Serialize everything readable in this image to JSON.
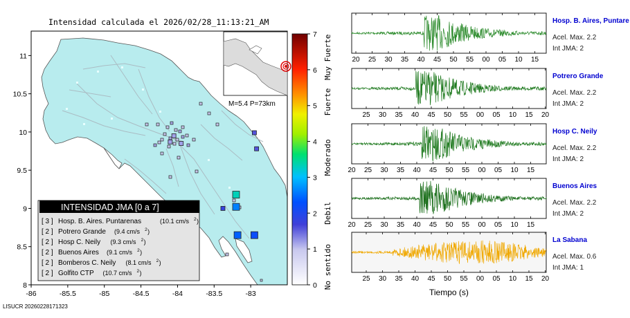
{
  "header": {
    "title": "Intensidad calculada el 2026/02/28_11:13:21_AM"
  },
  "map": {
    "x_ticks": [
      "-86",
      "-85.5",
      "-85",
      "-84.5",
      "-84",
      "-83.5",
      "-83"
    ],
    "y_ticks": [
      "11",
      "10.5",
      "10",
      "9.5",
      "9",
      "8.5",
      "8"
    ],
    "inset_label": "M=5.4 P=73km",
    "land_color": "#b8ecee",
    "stations": [
      {
        "lon": -83.2,
        "lat": 9.18,
        "level": 3.3
      },
      {
        "lon": -83.2,
        "lat": 9.02,
        "level": 2.6
      },
      {
        "lon": -83.18,
        "lat": 8.65,
        "level": 2.4
      },
      {
        "lon": -82.95,
        "lat": 8.65,
        "level": 2.2
      },
      {
        "lon": -83.38,
        "lat": 9.0,
        "level": 1.8
      },
      {
        "lon": -82.95,
        "lat": 9.99,
        "level": 1.6
      },
      {
        "lon": -82.92,
        "lat": 9.78,
        "level": 1.6
      },
      {
        "lon": -83.95,
        "lat": 9.85,
        "level": 1.2
      },
      {
        "lon": -84.05,
        "lat": 9.95,
        "level": 1.2
      },
      {
        "lon": -84.1,
        "lat": 9.87,
        "level": 1.2
      }
    ]
  },
  "colorbar": {
    "ticks": [
      "0",
      "1",
      "2",
      "3",
      "4",
      "5",
      "6",
      "7"
    ],
    "labels": [
      "No sentido",
      "Debil",
      "Moderado",
      "Fuerte",
      "Muy Fuerte"
    ]
  },
  "legend": {
    "title": "INTENSIDAD JMA [0 a 7]",
    "items": [
      {
        "jma": "[ 3 ]",
        "name": "Hosp. B. Aires. Puntarenas",
        "accel": "(10.1 cm/s",
        "unit_exp": "2",
        "close": ")"
      },
      {
        "jma": "[ 2 ]",
        "name": "Potrero Grande",
        "accel": "(9.4 cm/s",
        "unit_exp": "2",
        "close": ")"
      },
      {
        "jma": "[ 2 ]",
        "name": "Hosp C. Neily",
        "accel": "(9.3 cm/s",
        "unit_exp": "2",
        "close": ")"
      },
      {
        "jma": "[ 2 ]",
        "name": "Buenos Aires",
        "accel": "(9.1 cm/s",
        "unit_exp": "2",
        "close": ")"
      },
      {
        "jma": "[ 2 ]",
        "name": "Bomberos C. Neily",
        "accel": "(8.1 cm/s",
        "unit_exp": "2",
        "close": ")"
      },
      {
        "jma": "[ 2 ]",
        "name": "Golfito CTP",
        "accel": "(10.7 cm/s",
        "unit_exp": "2",
        "close": ")"
      }
    ]
  },
  "footer": {
    "code": "LISUCR 20260228171323"
  },
  "waveforms": {
    "xlabel": "Tiempo (s)",
    "panels": [
      {
        "station": "Hosp. B. Aires, Puntare",
        "accel": "Acel. Max. 2.2",
        "jma": "Int JMA: 2",
        "color": "#2a8a2a",
        "ticks": [
          "20",
          "25",
          "30",
          "35",
          "40",
          "45",
          "50",
          "55",
          "00",
          "05",
          "10",
          "15"
        ]
      },
      {
        "station": "Potrero Grande",
        "accel": "Acel. Max. 2.2",
        "jma": "Int JMA: 2",
        "color": "#1f7a1f",
        "ticks": [
          "25",
          "30",
          "35",
          "40",
          "45",
          "50",
          "55",
          "00",
          "05",
          "10",
          "15",
          "20"
        ]
      },
      {
        "station": "Hosp C. Neily",
        "accel": "Acel. Max. 2.2",
        "jma": "Int JMA: 2",
        "color": "#1f7a1f",
        "ticks": [
          "20",
          "25",
          "30",
          "35",
          "40",
          "45",
          "50",
          "55",
          "00",
          "05",
          "10",
          "15"
        ]
      },
      {
        "station": "Buenos Aires",
        "accel": "Acel. Max. 2.2",
        "jma": "Int JMA: 2",
        "color": "#1a6e1a",
        "ticks": [
          "20",
          "25",
          "30",
          "35",
          "40",
          "45",
          "50",
          "55",
          "00",
          "05",
          "10",
          "15"
        ]
      },
      {
        "station": "La Sabana",
        "accel": "Acel. Max. 0.6",
        "jma": "Int JMA: 1",
        "color": "#f0a800",
        "ticks": [
          "25",
          "30",
          "35",
          "40",
          "45",
          "50",
          "55",
          "00",
          "05",
          "10",
          "15",
          "20"
        ]
      }
    ]
  },
  "chart_data": [
    {
      "type": "scatter",
      "title": "Intensidad calculada el 2026/02/28_11:13:21_AM",
      "xlim": [
        -86,
        -82.5
      ],
      "ylim": [
        8,
        11.3
      ],
      "legend_title": "INTENSIDAD JMA [0 a 7]",
      "series": [
        {
          "name": "Hosp. B. Aires. Puntarenas",
          "jma": 3,
          "pga_cm_s2": 10.1
        },
        {
          "name": "Potrero Grande",
          "jma": 2,
          "pga_cm_s2": 9.4
        },
        {
          "name": "Hosp C. Neily",
          "jma": 2,
          "pga_cm_s2": 9.3
        },
        {
          "name": "Buenos Aires",
          "jma": 2,
          "pga_cm_s2": 9.1
        },
        {
          "name": "Bomberos C. Neily",
          "jma": 2,
          "pga_cm_s2": 8.1
        },
        {
          "name": "Golfito CTP",
          "jma": 2,
          "pga_cm_s2": 10.7
        }
      ],
      "colorbar_range": [
        0,
        7
      ]
    },
    {
      "type": "line",
      "xlabel": "Tiempo (s)",
      "series": [
        {
          "name": "Hosp. B. Aires, Puntare",
          "max_accel": 2.2,
          "jma": 2
        },
        {
          "name": "Potrero Grande",
          "max_accel": 2.2,
          "jma": 2
        },
        {
          "name": "Hosp C. Neily",
          "max_accel": 2.2,
          "jma": 2
        },
        {
          "name": "Buenos Aires",
          "max_accel": 2.2,
          "jma": 2
        },
        {
          "name": "La Sabana",
          "max_accel": 0.6,
          "jma": 1
        }
      ]
    }
  ]
}
